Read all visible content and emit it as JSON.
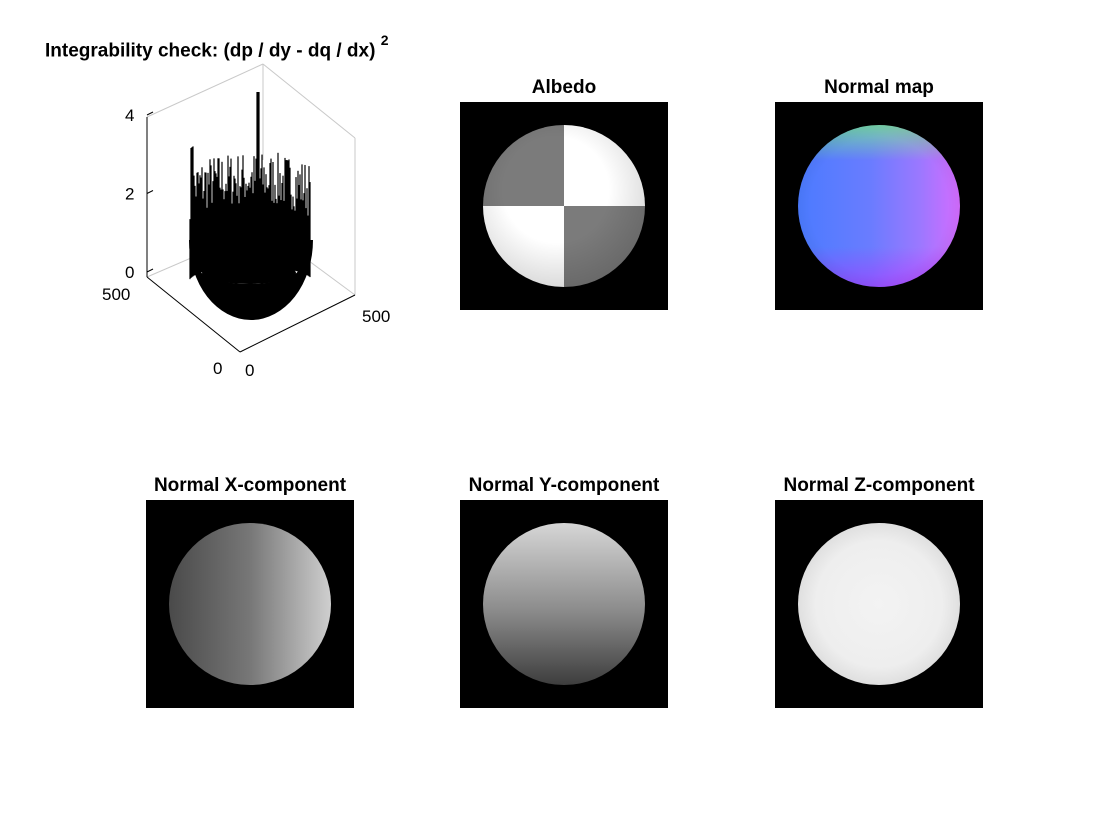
{
  "figure": {
    "surface_title": "Integrability check: (dp / dy - dq / dx)",
    "surface_title_sup": "2",
    "albedo_title": "Albedo",
    "normal_map_title": "Normal map",
    "nx_title": "Normal X-component",
    "ny_title": "Normal Y-component",
    "nz_title": "Normal Z-component"
  },
  "chart_data": [
    {
      "type": "surface",
      "title": "Integrability check: (dp / dy - dq / dx) ^2",
      "xlim": [
        0,
        500
      ],
      "ylim": [
        0,
        500
      ],
      "zlim": [
        0,
        4.4
      ],
      "x_ticks": [
        "0",
        "500"
      ],
      "y_ticks": [
        "0",
        "500"
      ],
      "z_ticks": [
        "0",
        "2",
        "4"
      ],
      "description_values": {
        "peak_z": 4.4,
        "ring_spike_typical_z": [
          0.5,
          2.5
        ],
        "flat_region_z": 0
      }
    },
    {
      "type": "image",
      "title": "Albedo"
    },
    {
      "type": "image",
      "title": "Normal map"
    },
    {
      "type": "image",
      "title": "Normal X-component"
    },
    {
      "type": "image",
      "title": "Normal Y-component"
    },
    {
      "type": "image",
      "title": "Normal Z-component"
    }
  ]
}
